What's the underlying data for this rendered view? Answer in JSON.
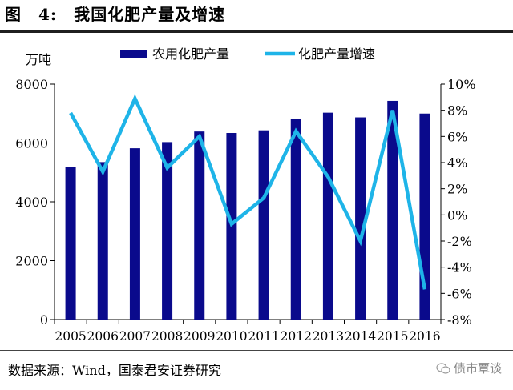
{
  "header": {
    "figure_title": "图　4:　我国化肥产量及增速"
  },
  "footer": {
    "source": "数据来源：Wind，国泰君安证券研究",
    "watermark": "债市覃谈"
  },
  "colors": {
    "bar": "#0a0a8c",
    "line": "#1eb4e8",
    "axis": "#000000"
  },
  "chart_data": {
    "type": "bar",
    "title": "我国化肥产量及增速",
    "y_unit_label": "万吨",
    "categories": [
      "2005",
      "2006",
      "2007",
      "2008",
      "2009",
      "2010",
      "2011",
      "2012",
      "2013",
      "2014",
      "2015",
      "2016"
    ],
    "series": [
      {
        "name": "农用化肥产量",
        "type": "bar",
        "axis": "left",
        "values": [
          5180,
          5350,
          5820,
          6030,
          6390,
          6340,
          6430,
          6830,
          7030,
          6870,
          7430,
          7000
        ]
      },
      {
        "name": "化肥产量增速",
        "type": "line",
        "axis": "right",
        "values": [
          7.8,
          3.3,
          8.9,
          3.6,
          6.0,
          -0.7,
          1.3,
          6.4,
          2.9,
          -2.0,
          8.0,
          -5.7
        ]
      }
    ],
    "y_left": {
      "min": 0,
      "max": 8000,
      "ticks": [
        0,
        2000,
        4000,
        6000,
        8000
      ]
    },
    "y_right": {
      "min": -8,
      "max": 10,
      "ticks": [
        10,
        8,
        6,
        4,
        2,
        0,
        -2,
        -4,
        -6,
        -8
      ],
      "tick_labels": [
        "10%",
        "8%",
        "6%",
        "4%",
        "2%",
        "0%",
        "-2%",
        "-4%",
        "-6%",
        "-8%"
      ]
    },
    "legend_position": "top-center",
    "grid": false
  }
}
